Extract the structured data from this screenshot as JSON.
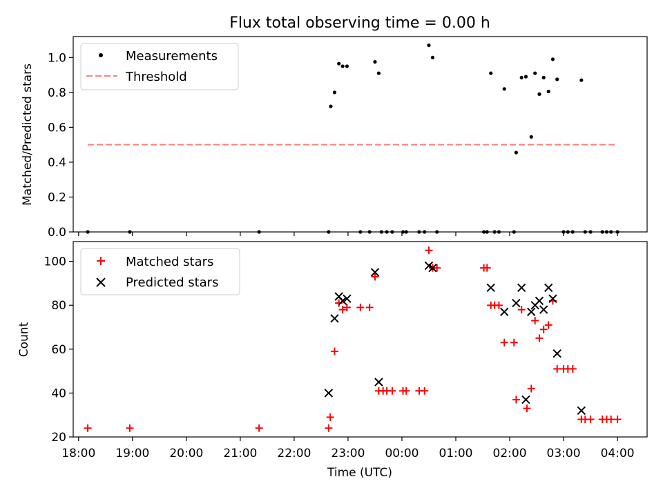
{
  "chart_data": [
    {
      "type": "scatter",
      "title": "Flux total observing time = 0.00 h",
      "xlabel": "",
      "ylabel": "Matched/Predicted stars",
      "xlim": [
        -0.1,
        10.55
      ],
      "ylim": [
        0,
        1.12
      ],
      "yticks": [
        0.0,
        0.2,
        0.4,
        0.6,
        0.8,
        1.0
      ],
      "ytick_labels": [
        "0.0",
        "0.2",
        "0.4",
        "0.6",
        "0.8",
        "1.0"
      ],
      "legend": {
        "position": "top-left",
        "entries": [
          "Measurements",
          "Threshold"
        ]
      },
      "series": [
        {
          "name": "Measurements",
          "marker": "dot",
          "color": "#000000",
          "points": [
            [
              0.17,
              0
            ],
            [
              0.95,
              0
            ],
            [
              3.35,
              0
            ],
            [
              4.64,
              0
            ],
            [
              5.23,
              0
            ],
            [
              5.4,
              0
            ],
            [
              5.62,
              0
            ],
            [
              5.72,
              0
            ],
            [
              5.82,
              0
            ],
            [
              6.02,
              0
            ],
            [
              6.08,
              0
            ],
            [
              6.32,
              0
            ],
            [
              6.42,
              0
            ],
            [
              6.65,
              0
            ],
            [
              7.52,
              0
            ],
            [
              7.58,
              0
            ],
            [
              7.72,
              0
            ],
            [
              7.8,
              0
            ],
            [
              8.08,
              0
            ],
            [
              9.0,
              0
            ],
            [
              9.08,
              0
            ],
            [
              9.17,
              0
            ],
            [
              9.4,
              0
            ],
            [
              9.5,
              0
            ],
            [
              9.72,
              0
            ],
            [
              9.8,
              0
            ],
            [
              9.88,
              0
            ],
            [
              10.0,
              0
            ],
            [
              4.68,
              0.72
            ],
            [
              4.75,
              0.8
            ],
            [
              4.83,
              0.965
            ],
            [
              4.9,
              0.95
            ],
            [
              4.98,
              0.95
            ],
            [
              5.5,
              0.975
            ],
            [
              5.57,
              0.91
            ],
            [
              6.5,
              1.07
            ],
            [
              6.57,
              1.0
            ],
            [
              7.65,
              0.91
            ],
            [
              7.9,
              0.82
            ],
            [
              8.12,
              0.455
            ],
            [
              8.22,
              0.885
            ],
            [
              8.3,
              0.89
            ],
            [
              8.4,
              0.545
            ],
            [
              8.47,
              0.91
            ],
            [
              8.55,
              0.79
            ],
            [
              8.63,
              0.885
            ],
            [
              8.72,
              0.805
            ],
            [
              8.8,
              0.99
            ],
            [
              8.88,
              0.875
            ],
            [
              9.33,
              0.87
            ]
          ]
        },
        {
          "name": "Threshold",
          "line": "dashed",
          "color": "#ff7f7f",
          "x": [
            0.17,
            10.0
          ],
          "y": [
            0.5,
            0.5
          ]
        }
      ]
    },
    {
      "type": "scatter",
      "title": "",
      "xlabel": "Time (UTC)",
      "ylabel": "Count",
      "xlim": [
        -0.1,
        10.55
      ],
      "ylim": [
        20,
        109
      ],
      "yticks": [
        20,
        40,
        60,
        80,
        100
      ],
      "ytick_labels": [
        "20",
        "40",
        "60",
        "80",
        "100"
      ],
      "xticks": [
        0,
        1,
        2,
        3,
        4,
        5,
        6,
        7,
        8,
        9,
        10
      ],
      "xtick_labels": [
        "18:00",
        "19:00",
        "20:00",
        "21:00",
        "22:00",
        "23:00",
        "00:00",
        "01:00",
        "02:00",
        "03:00",
        "04:00"
      ],
      "legend": {
        "position": "top-left",
        "entries": [
          "Matched stars",
          "Predicted stars"
        ]
      },
      "series": [
        {
          "name": "Matched stars",
          "marker": "plus",
          "color": "#ff0000",
          "points": [
            [
              0.17,
              24
            ],
            [
              0.95,
              24
            ],
            [
              3.35,
              24
            ],
            [
              4.64,
              24
            ],
            [
              4.67,
              29
            ],
            [
              4.75,
              59
            ],
            [
              4.83,
              81
            ],
            [
              4.9,
              78
            ],
            [
              4.98,
              79
            ],
            [
              5.23,
              79
            ],
            [
              5.4,
              79
            ],
            [
              5.5,
              93
            ],
            [
              5.57,
              41
            ],
            [
              5.65,
              41
            ],
            [
              5.72,
              41
            ],
            [
              5.82,
              41
            ],
            [
              6.02,
              41
            ],
            [
              6.08,
              41
            ],
            [
              6.32,
              41
            ],
            [
              6.42,
              41
            ],
            [
              6.5,
              105
            ],
            [
              6.57,
              97
            ],
            [
              6.65,
              97
            ],
            [
              7.52,
              97
            ],
            [
              7.58,
              97
            ],
            [
              7.65,
              80
            ],
            [
              7.72,
              80
            ],
            [
              7.8,
              80
            ],
            [
              7.9,
              63
            ],
            [
              8.08,
              63
            ],
            [
              8.12,
              37
            ],
            [
              8.22,
              78
            ],
            [
              8.32,
              33
            ],
            [
              8.4,
              42
            ],
            [
              8.47,
              73
            ],
            [
              8.55,
              65
            ],
            [
              8.63,
              69
            ],
            [
              8.72,
              71
            ],
            [
              8.8,
              82
            ],
            [
              8.88,
              51
            ],
            [
              9.0,
              51
            ],
            [
              9.08,
              51
            ],
            [
              9.17,
              51
            ],
            [
              9.33,
              28
            ],
            [
              9.4,
              28
            ],
            [
              9.5,
              28
            ],
            [
              9.72,
              28
            ],
            [
              9.8,
              28
            ],
            [
              9.88,
              28
            ],
            [
              10.0,
              28
            ]
          ]
        },
        {
          "name": "Predicted stars",
          "marker": "x",
          "color": "#000000",
          "points": [
            [
              4.64,
              40
            ],
            [
              4.75,
              74
            ],
            [
              4.83,
              84
            ],
            [
              4.9,
              82
            ],
            [
              4.98,
              83
            ],
            [
              5.5,
              95
            ],
            [
              5.57,
              45
            ],
            [
              6.5,
              98
            ],
            [
              6.57,
              97
            ],
            [
              7.65,
              88
            ],
            [
              7.9,
              77
            ],
            [
              8.12,
              81
            ],
            [
              8.22,
              88
            ],
            [
              8.3,
              37
            ],
            [
              8.4,
              77
            ],
            [
              8.47,
              80
            ],
            [
              8.55,
              82
            ],
            [
              8.63,
              78
            ],
            [
              8.72,
              88
            ],
            [
              8.8,
              83
            ],
            [
              8.88,
              58
            ],
            [
              9.33,
              32
            ]
          ]
        }
      ]
    }
  ]
}
